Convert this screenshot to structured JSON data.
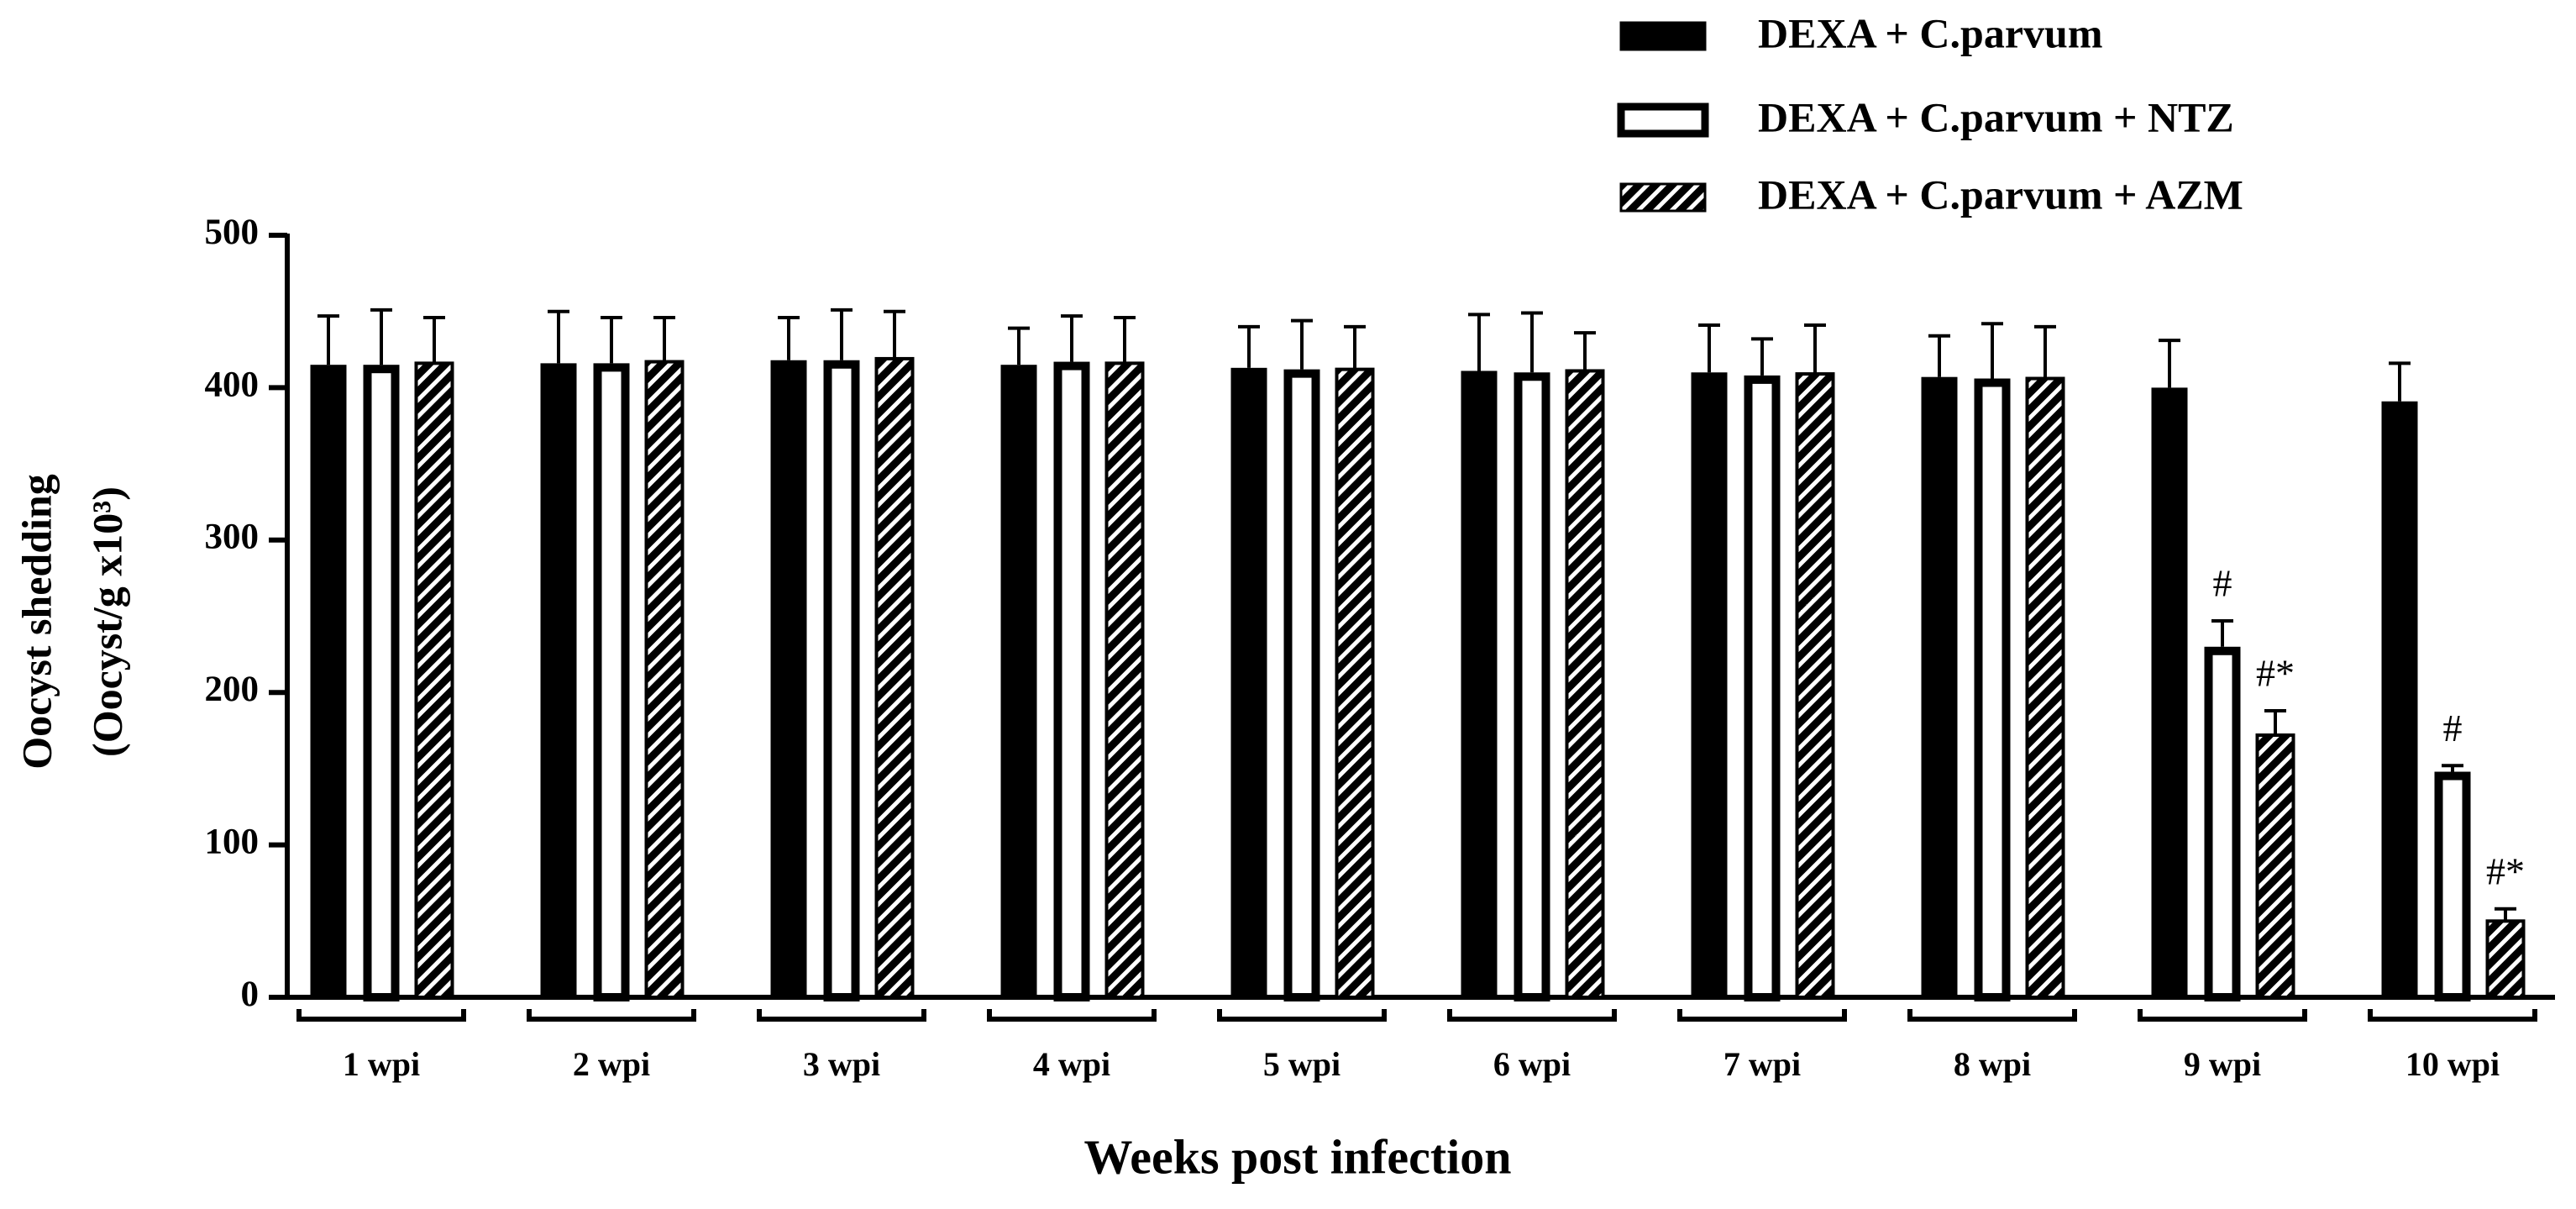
{
  "chart_data": {
    "type": "bar",
    "y_label": [
      "Oocyst shedding",
      "(Oocyst/g x10³)"
    ],
    "x_label": "Weeks post infection",
    "categories": [
      "1 wpi",
      "2 wpi",
      "3 wpi",
      "4 wpi",
      "5 wpi",
      "6 wpi",
      "7 wpi",
      "8 wpi",
      "9 wpi",
      "10 wpi"
    ],
    "ylim": [
      0,
      500
    ],
    "yticks": [
      0,
      100,
      200,
      300,
      400,
      500
    ],
    "series": [
      {
        "name": "DEXA + C.parvum",
        "color": "#000000",
        "fill": "solid",
        "values": [
          415,
          416,
          418,
          415,
          413,
          411,
          410,
          407,
          400,
          391
        ],
        "errors": [
          32,
          34,
          28,
          24,
          27,
          37,
          31,
          27,
          31,
          25
        ]
      },
      {
        "name": "DEXA + C.parvum + NTZ",
        "color": "#ffffff",
        "fill": "open",
        "values": [
          415,
          416,
          418,
          417,
          412,
          410,
          408,
          406,
          230,
          148
        ],
        "errors": [
          36,
          30,
          33,
          30,
          32,
          39,
          24,
          36,
          17,
          4
        ],
        "significance": [
          null,
          null,
          null,
          null,
          null,
          null,
          null,
          null,
          "#",
          "#"
        ]
      },
      {
        "name": "DEXA + C.parvum + AZM",
        "color": "#000000",
        "fill": "hatch",
        "values": [
          416,
          417,
          419,
          416,
          412,
          411,
          409,
          406,
          172,
          50
        ],
        "errors": [
          30,
          29,
          31,
          30,
          28,
          25,
          32,
          34,
          16,
          8
        ],
        "significance": [
          null,
          null,
          null,
          null,
          null,
          null,
          null,
          null,
          "#*",
          "#*"
        ]
      }
    ],
    "legend": "top-right"
  }
}
